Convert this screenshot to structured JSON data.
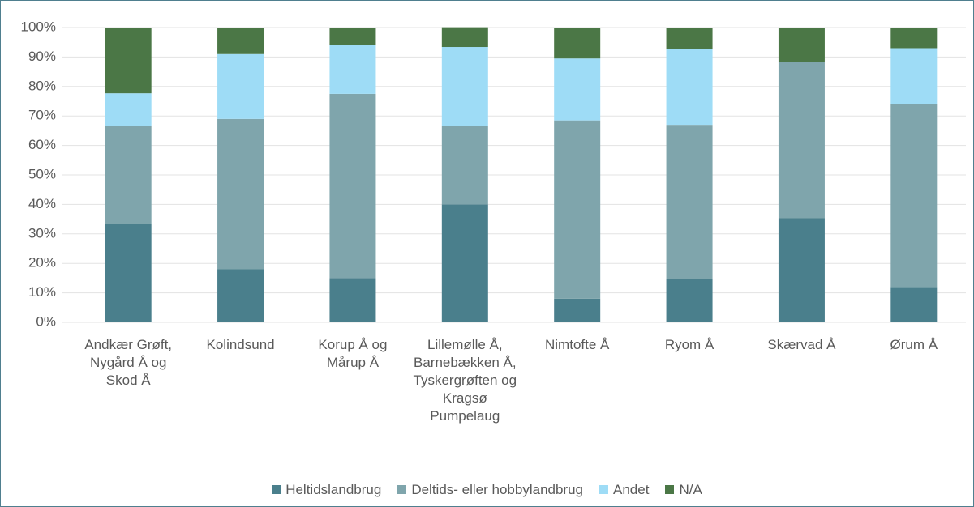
{
  "chart_data": {
    "type": "stacked_bar",
    "categories": [
      "Andkær Grøft, Nygård Å og Skod Å",
      "Kolindsund",
      "Korup Å og Mårup Å",
      "Lillemølle Å, Barnebækken Å, Tyskergrøften og Kragsø Pumpelaug",
      "Nimtofte Å",
      "Ryom Å",
      "Skærvad Å",
      "Ørum Å"
    ],
    "series": [
      {
        "name": "Heltidslandbrug",
        "color": "#4a7f8c",
        "values": [
          33.3,
          18,
          15,
          40,
          8,
          14.8,
          35.3,
          12
        ]
      },
      {
        "name": "Deltids- eller hobbylandbrug",
        "color": "#7fa5ac",
        "values": [
          33.3,
          51,
          62.5,
          26.7,
          60.5,
          52.2,
          52.9,
          62
        ]
      },
      {
        "name": "Andet",
        "color": "#9edcf6",
        "values": [
          11.1,
          22,
          16.5,
          26.7,
          21,
          25.6,
          0,
          19
        ]
      },
      {
        "name": "N/A",
        "color": "#4b7746",
        "values": [
          22.2,
          9,
          6,
          6.7,
          10.5,
          7.4,
          11.8,
          7
        ]
      }
    ],
    "ylim": [
      0,
      100
    ],
    "yticks": [
      {
        "value": 0,
        "label": "0%"
      },
      {
        "value": 10,
        "label": "10%"
      },
      {
        "value": 20,
        "label": "20%"
      },
      {
        "value": 30,
        "label": "30%"
      },
      {
        "value": 40,
        "label": "40%"
      },
      {
        "value": 50,
        "label": "50%"
      },
      {
        "value": 60,
        "label": "60%"
      },
      {
        "value": 70,
        "label": "70%"
      },
      {
        "value": 80,
        "label": "80%"
      },
      {
        "value": 90,
        "label": "90%"
      },
      {
        "value": 100,
        "label": "100%"
      }
    ],
    "grid": true,
    "legend": "bottom"
  }
}
